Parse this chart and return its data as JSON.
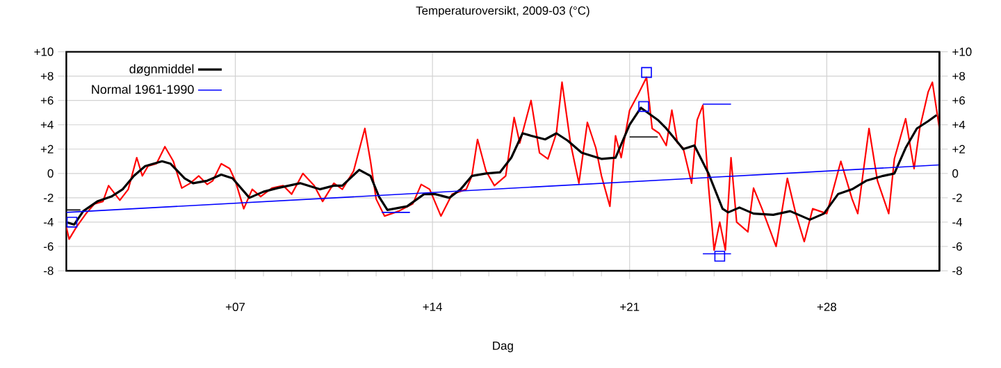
{
  "chart_data": {
    "type": "line",
    "title": "Temperaturoversikt, 2009-03 (°C)",
    "xlabel": "Dag",
    "xlim": [
      1,
      32
    ],
    "xticks": [
      {
        "value": 7,
        "label": "+07"
      },
      {
        "value": 14,
        "label": "+14"
      },
      {
        "value": 21,
        "label": "+21"
      },
      {
        "value": 28,
        "label": "+28"
      }
    ],
    "ylim": [
      -8,
      10
    ],
    "yticks": [
      -8,
      -6,
      -4,
      -2,
      0,
      {
        "value": 2,
        "label": "+2"
      },
      {
        "value": 4,
        "label": "+4"
      },
      {
        "value": 6,
        "label": "+6"
      },
      {
        "value": 8,
        "label": "+8"
      },
      {
        "value": 10,
        "label": "+10"
      }
    ],
    "y2lim": [
      -8,
      10
    ],
    "y2ticks": [
      -8,
      -6,
      -4,
      -2,
      0,
      {
        "value": 2,
        "label": "+2"
      },
      {
        "value": 4,
        "label": "+4"
      },
      {
        "value": 6,
        "label": "+6"
      },
      {
        "value": 8,
        "label": "+8"
      },
      {
        "value": 10,
        "label": "+10"
      }
    ],
    "grid": true,
    "legend": "top left",
    "series": [
      {
        "type": "line",
        "color": "#ff0000",
        "x": [
          1,
          1.1,
          1.36,
          1.7,
          2.0,
          2.3,
          2.5,
          2.8,
          2.9,
          3.2,
          3.5,
          3.7,
          3.9,
          4.2,
          4.5,
          4.8,
          5.1,
          5.4,
          5.7,
          6.0,
          6.2,
          6.5,
          6.8,
          7.0,
          7.3,
          7.6,
          7.9,
          8.3,
          8.7,
          9.0,
          9.4,
          9.8,
          10.1,
          10.5,
          10.8,
          11.2,
          11.6,
          11.8,
          12.0,
          12.3,
          12.8,
          13.3,
          13.6,
          13.9,
          14.3,
          14.7,
          15.2,
          15.4,
          15.6,
          15.9,
          16.2,
          16.6,
          16.9,
          17.1,
          17.5,
          17.8,
          18.1,
          18.4,
          18.6,
          18.9,
          19.2,
          19.5,
          19.8,
          20.0,
          20.3,
          20.5,
          20.7,
          21.0,
          21.3,
          21.6,
          21.8,
          22.05,
          22.3,
          22.5,
          22.7,
          22.9,
          23.2,
          23.4,
          23.6,
          23.8,
          24.0,
          24.2,
          24.4,
          24.6,
          24.8,
          25.2,
          25.4,
          25.7,
          26.2,
          26.6,
          26.9,
          27.2,
          27.5,
          28.0,
          28.5,
          28.9,
          29.1,
          29.5,
          29.8,
          30.2,
          30.4,
          30.8,
          31.1,
          31.3,
          31.6,
          31.75,
          32.0
        ],
        "values": [
          -4.4,
          -5.4,
          -4.4,
          -3.3,
          -2.5,
          -2.3,
          -1.0,
          -1.9,
          -2.2,
          -1.3,
          1.3,
          -0.2,
          0.6,
          0.8,
          2.2,
          1.0,
          -1.2,
          -0.8,
          -0.2,
          -0.9,
          -0.6,
          0.8,
          0.4,
          -0.6,
          -2.9,
          -1.3,
          -1.9,
          -1.2,
          -1.0,
          -1.7,
          0.0,
          -1.0,
          -2.3,
          -0.8,
          -1.3,
          0.2,
          3.7,
          1.0,
          -2.1,
          -3.5,
          -3.1,
          -2.5,
          -0.9,
          -1.3,
          -3.5,
          -1.7,
          -1.3,
          -0.2,
          2.8,
          0.2,
          -1.0,
          -0.2,
          4.6,
          2.5,
          6.0,
          1.7,
          1.2,
          3.3,
          7.5,
          2.5,
          -0.8,
          4.2,
          2.1,
          -0.2,
          -2.7,
          3.1,
          1.3,
          5.2,
          6.5,
          7.9,
          3.7,
          3.3,
          2.3,
          5.2,
          2.5,
          2.1,
          -0.8,
          4.4,
          5.6,
          -1.0,
          -6.3,
          -4.0,
          -6.3,
          1.3,
          -4.0,
          -4.8,
          -1.2,
          -2.9,
          -6.0,
          -0.4,
          -3.3,
          -5.6,
          -2.9,
          -3.3,
          1.0,
          -2.1,
          -3.3,
          3.7,
          -0.6,
          -3.3,
          1.2,
          4.5,
          0.4,
          3.7,
          6.7,
          7.5,
          3.7
        ]
      },
      {
        "name": "døgnmiddel",
        "color": "#000000",
        "x": [
          1,
          1.28,
          1.6,
          2.1,
          2.6,
          3.0,
          3.4,
          3.8,
          4.4,
          4.7,
          5.2,
          5.5,
          6.0,
          6.5,
          6.9,
          7.5,
          8.0,
          8.5,
          9.3,
          10.0,
          10.5,
          10.8,
          11.4,
          11.8,
          12.1,
          12.4,
          13.1,
          13.7,
          14.1,
          14.6,
          15.0,
          15.4,
          15.9,
          16.4,
          16.8,
          17.2,
          17.5,
          18.0,
          18.4,
          18.8,
          19.3,
          20.0,
          20.5,
          21.0,
          21.4,
          22.0,
          22.3,
          22.8,
          22.9,
          23.3,
          23.8,
          24.3,
          24.5,
          24.9,
          25.4,
          26.1,
          26.7,
          27.4,
          27.9,
          28.4,
          28.9,
          29.4,
          30.0,
          30.4,
          30.8,
          31.2,
          31.6,
          31.9
        ],
        "values": [
          -4.0,
          -4.2,
          -3.1,
          -2.3,
          -1.9,
          -1.3,
          -0.2,
          0.6,
          1.0,
          0.8,
          -0.4,
          -0.8,
          -0.6,
          -0.1,
          -0.4,
          -2.0,
          -1.5,
          -1.2,
          -0.8,
          -1.3,
          -1.0,
          -1.0,
          0.3,
          -0.2,
          -1.9,
          -3.0,
          -2.7,
          -1.7,
          -1.7,
          -2.0,
          -1.3,
          -0.2,
          0.0,
          0.1,
          1.3,
          3.3,
          3.1,
          2.8,
          3.3,
          2.7,
          1.7,
          1.2,
          1.3,
          4.0,
          5.4,
          4.4,
          3.7,
          2.3,
          2.0,
          2.3,
          0.0,
          -2.9,
          -3.2,
          -2.8,
          -3.3,
          -3.4,
          -3.1,
          -3.8,
          -3.3,
          -1.7,
          -1.3,
          -0.6,
          -0.2,
          0.0,
          2.1,
          3.7,
          4.3,
          4.8
        ]
      },
      {
        "name": "Normal 1961-1990",
        "color": "#0000ff",
        "x": [
          1,
          32
        ],
        "values": [
          -3.2,
          0.7
        ]
      },
      {
        "type": "scatter",
        "marker": "square",
        "color": "#0000ff",
        "x": [
          1.2,
          21.5,
          21.6,
          24.2
        ],
        "values": [
          -4.0,
          5.5,
          8.3,
          -6.8
        ]
      },
      {
        "color": "#000000",
        "x": [
          1.0,
          1.5
        ],
        "values": [
          -3.0,
          -3.0
        ]
      },
      {
        "color": "#000000",
        "x": [
          21.0,
          22.0
        ],
        "values": [
          3.0,
          3.0
        ]
      },
      {
        "color": "#0000ff",
        "x": [
          12.2,
          13.2
        ],
        "values": [
          -3.2,
          -3.2
        ]
      },
      {
        "color": "#0000ff",
        "x": [
          23.6,
          24.6
        ],
        "values": [
          5.7,
          5.7
        ]
      },
      {
        "color": "#0000ff",
        "x": [
          23.6,
          24.6
        ],
        "values": [
          -6.6,
          -6.6
        ]
      }
    ]
  }
}
